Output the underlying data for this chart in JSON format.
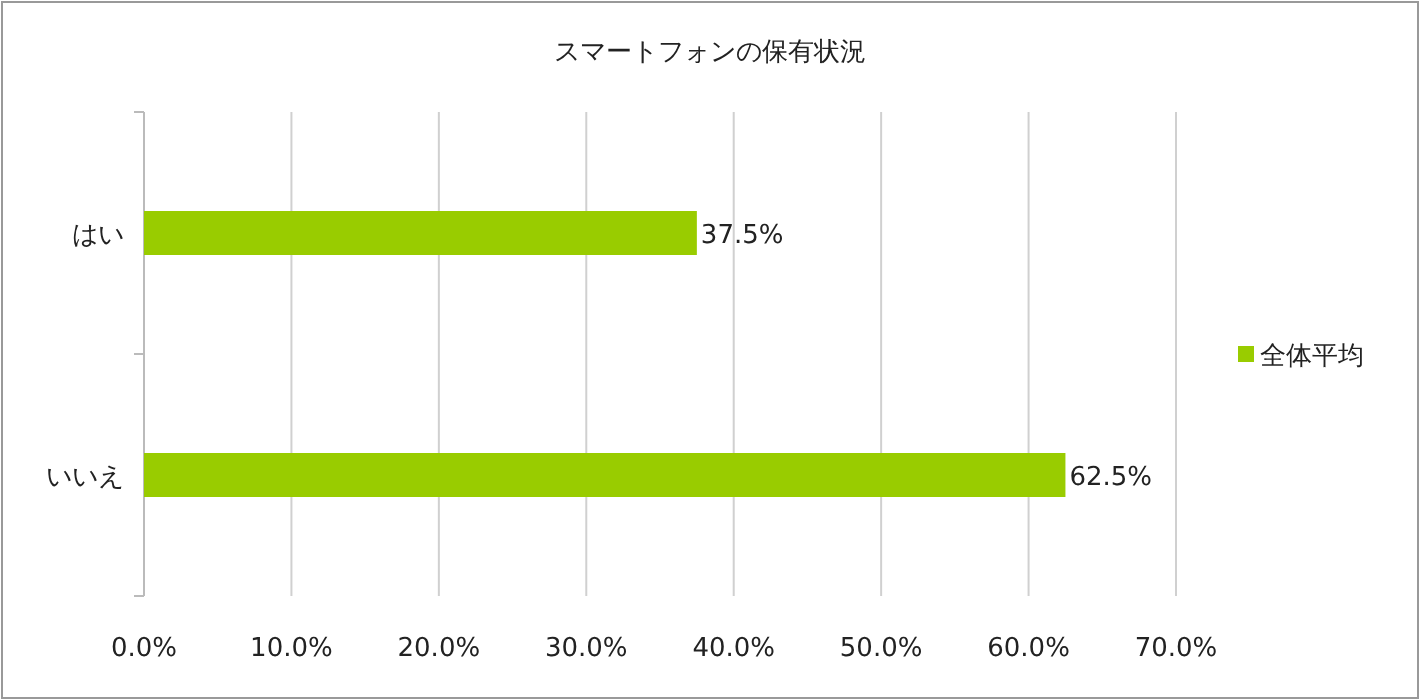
{
  "chart_data": {
    "type": "bar",
    "orientation": "horizontal",
    "title": "スマートフォンの保有状況",
    "categories": [
      "はい",
      "いいえ"
    ],
    "series": [
      {
        "name": "全体平均",
        "color": "#99cc00",
        "values": [
          37.5,
          62.5
        ]
      }
    ],
    "value_labels": [
      "37.5%",
      "62.5%"
    ],
    "xlim": [
      0,
      70
    ],
    "xticks": [
      {
        "value": 0,
        "label": "0.0%"
      },
      {
        "value": 10,
        "label": "10.0%"
      },
      {
        "value": 20,
        "label": "20.0%"
      },
      {
        "value": 30,
        "label": "30.0%"
      },
      {
        "value": 40,
        "label": "40.0%"
      },
      {
        "value": 50,
        "label": "50.0%"
      },
      {
        "value": 60,
        "label": "60.0%"
      },
      {
        "value": 70,
        "label": "70.0%"
      }
    ],
    "grid": "x",
    "legend": "right"
  }
}
